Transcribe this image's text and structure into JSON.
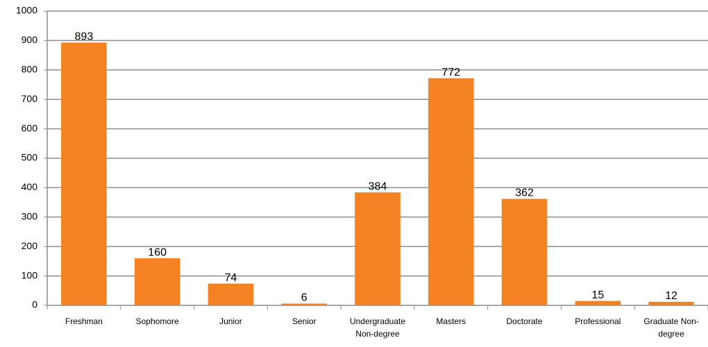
{
  "chart_data": {
    "type": "bar",
    "categories": [
      "Freshman",
      "Sophomore",
      "Junior",
      "Senior",
      "Undergraduate Non-degree",
      "Masters",
      "Doctorate",
      "Professional",
      "Graduate Non-degree"
    ],
    "values": [
      893,
      160,
      74,
      6,
      384,
      772,
      362,
      15,
      12
    ],
    "color": "#f58220",
    "ylim": [
      0,
      1000
    ],
    "yticks": [
      0,
      100,
      200,
      300,
      400,
      500,
      600,
      700,
      800,
      900,
      1000
    ],
    "grid": true
  }
}
